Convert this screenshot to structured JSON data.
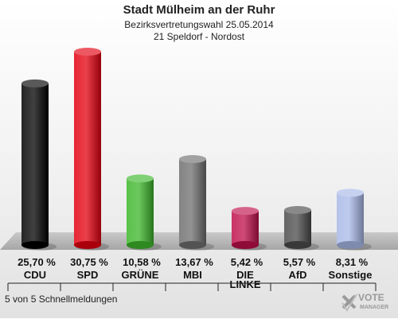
{
  "header": {
    "title": "Stadt Mülheim an der Ruhr",
    "subtitle": "Bezirksvertretungswahl 25.05.2014",
    "district": "21 Speldorf - Nordost"
  },
  "chart_data": {
    "type": "bar",
    "categories": [
      "CDU",
      "SPD",
      "GRÜNE",
      "MBI",
      "DIE LINKE",
      "AfD",
      "Sonstige"
    ],
    "values": [
      25.7,
      30.75,
      10.58,
      13.67,
      5.42,
      5.57,
      8.31
    ],
    "value_labels": [
      "25,70 %",
      "30,75 %",
      "10,58 %",
      "13,67 %",
      "5,42 %",
      "5,57 %",
      "8,31 %"
    ],
    "colors": [
      "#000000",
      "#e3000f",
      "#3cb62a",
      "#6e6e6e",
      "#be0f4a",
      "#4a4a4a",
      "#a8b8e8"
    ],
    "legend": "none",
    "grid": false
  },
  "footer": {
    "status": "5 von 5 Schnellmeldungen"
  },
  "logo": {
    "line1": "VOTE",
    "line2": "MANAGER"
  }
}
